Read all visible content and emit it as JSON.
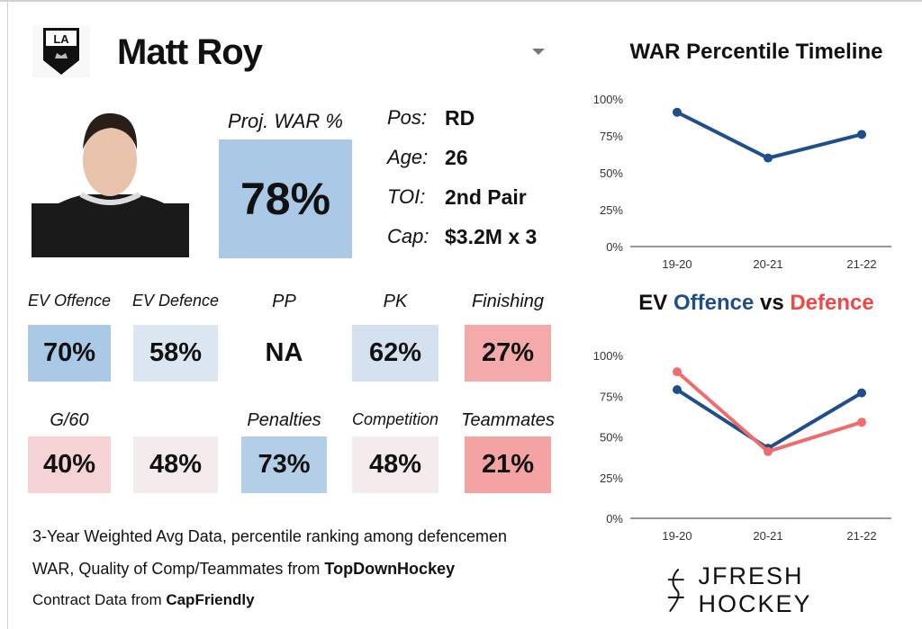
{
  "player": {
    "name": "Matt Roy",
    "team_logo_text": "LA"
  },
  "proj_war": {
    "label": "Proj. WAR %",
    "value": "78%"
  },
  "info": [
    {
      "label": "Pos:",
      "value": "RD"
    },
    {
      "label": "Age:",
      "value": "26"
    },
    {
      "label": "TOI:",
      "value": "2nd Pair"
    },
    {
      "label": "Cap:",
      "value": "$3.2M x 3"
    }
  ],
  "stats_row1": [
    {
      "label": "EV Offence",
      "value": "70%",
      "color": "#a9c9e6"
    },
    {
      "label": "EV Defence",
      "value": "58%",
      "color": "#dce6f0"
    },
    {
      "label": "PP",
      "value": "NA",
      "color": "#ffffff"
    },
    {
      "label": "PK",
      "value": "62%",
      "color": "#d4e2f0"
    },
    {
      "label": "Finishing",
      "value": "27%",
      "color": "#f4aaaa"
    }
  ],
  "stats_row2": [
    {
      "label": "G/60",
      "value": "40%",
      "color": "#f6d3d5"
    },
    {
      "label": "",
      "value": "48%",
      "color": "#f3ebec"
    },
    {
      "label": "Penalties",
      "value": "73%",
      "color": "#b3cfe8"
    },
    {
      "label": "Competition",
      "value": "48%",
      "color": "#f3ebec"
    },
    {
      "label": "Teammates",
      "value": "21%",
      "color": "#f4a3a3"
    }
  ],
  "footer": {
    "line1": "3-Year Weighted Avg Data, percentile ranking among defencemen",
    "line2_pre": "WAR, Quality of Comp/Teammates from ",
    "line2_bold": "TopDownHockey",
    "line3_pre": "Contract Data from ",
    "line3_bold": "CapFriendly"
  },
  "brand": "JFRESH HOCKEY",
  "chart_data": [
    {
      "type": "line",
      "title": "WAR Percentile Timeline",
      "categories": [
        "19-20",
        "20-21",
        "21-22"
      ],
      "ylim": [
        0,
        100
      ],
      "yticks": [
        "0%",
        "25%",
        "50%",
        "75%",
        "100%"
      ],
      "series": [
        {
          "name": "WAR",
          "color": "#1f4e8c",
          "values": [
            91,
            60,
            76
          ]
        }
      ]
    },
    {
      "type": "line",
      "title_parts": [
        "EV ",
        "Offence",
        " vs ",
        "Defence"
      ],
      "categories": [
        "19-20",
        "20-21",
        "21-22"
      ],
      "ylim": [
        0,
        100
      ],
      "yticks": [
        "0%",
        "25%",
        "50%",
        "75%",
        "100%"
      ],
      "series": [
        {
          "name": "Offence",
          "color": "#1f4e8c",
          "values": [
            79,
            43,
            77
          ]
        },
        {
          "name": "Defence",
          "color": "#f26b6b",
          "values": [
            90,
            41,
            59
          ]
        }
      ]
    }
  ]
}
